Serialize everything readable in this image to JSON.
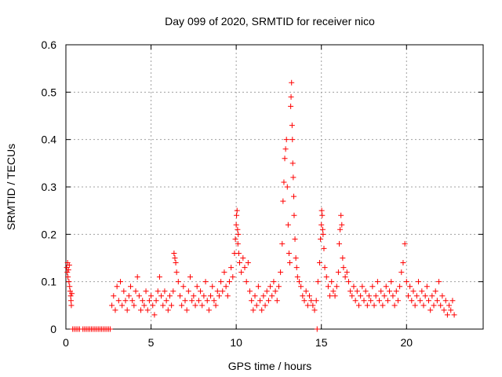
{
  "chart_data": {
    "type": "scatter",
    "title": "Day 099 of 2020, SRMTID for receiver nico",
    "xlabel": "GPS time / hours",
    "ylabel": "SRMTID / TECUs",
    "xlim": [
      0,
      24.5
    ],
    "ylim": [
      0,
      0.6
    ],
    "xticks": [
      0,
      5,
      10,
      15,
      20
    ],
    "xtick_labels": [
      "0",
      "5",
      "10",
      "15",
      "20"
    ],
    "yticks": [
      0,
      0.1,
      0.2,
      0.3,
      0.4,
      0.5,
      0.6
    ],
    "ytick_labels": [
      "0",
      "0.1",
      "0.2",
      "0.3",
      "0.4",
      "0.5",
      "0.6"
    ],
    "grid": true,
    "marker": "plus",
    "color": "#ff0000",
    "series": [
      {
        "name": "SRMTID",
        "points": [
          [
            0.05,
            0.13
          ],
          [
            0.08,
            0.12
          ],
          [
            0.1,
            0.14
          ],
          [
            0.12,
            0.11
          ],
          [
            0.15,
            0.125
          ],
          [
            0.18,
            0.1
          ],
          [
            0.2,
            0.135
          ],
          [
            0.22,
            0.09
          ],
          [
            0.25,
            0.08
          ],
          [
            0.28,
            0.07
          ],
          [
            0.3,
            0.06
          ],
          [
            0.32,
            0.05
          ],
          [
            0.35,
            0.075
          ],
          [
            0.4,
            0.0
          ],
          [
            0.5,
            0.0
          ],
          [
            0.6,
            0.0
          ],
          [
            0.7,
            0.0
          ],
          [
            0.8,
            0.0
          ],
          [
            1.0,
            0.0
          ],
          [
            1.1,
            0.0
          ],
          [
            1.2,
            0.0
          ],
          [
            1.3,
            0.0
          ],
          [
            1.4,
            0.0
          ],
          [
            1.5,
            0.0
          ],
          [
            1.6,
            0.0
          ],
          [
            1.7,
            0.0
          ],
          [
            1.8,
            0.0
          ],
          [
            1.9,
            0.0
          ],
          [
            2.0,
            0.0
          ],
          [
            2.1,
            0.0
          ],
          [
            2.2,
            0.0
          ],
          [
            2.3,
            0.0
          ],
          [
            2.4,
            0.0
          ],
          [
            2.5,
            0.0
          ],
          [
            2.6,
            0.0
          ],
          [
            2.7,
            0.05
          ],
          [
            2.8,
            0.07
          ],
          [
            2.9,
            0.04
          ],
          [
            3.0,
            0.09
          ],
          [
            3.1,
            0.06
          ],
          [
            3.2,
            0.1
          ],
          [
            3.3,
            0.05
          ],
          [
            3.4,
            0.08
          ],
          [
            3.5,
            0.06
          ],
          [
            3.6,
            0.04
          ],
          [
            3.7,
            0.07
          ],
          [
            3.8,
            0.09
          ],
          [
            3.9,
            0.06
          ],
          [
            4.0,
            0.05
          ],
          [
            4.1,
            0.08
          ],
          [
            4.2,
            0.11
          ],
          [
            4.3,
            0.07
          ],
          [
            4.4,
            0.04
          ],
          [
            4.5,
            0.06
          ],
          [
            4.6,
            0.05
          ],
          [
            4.7,
            0.08
          ],
          [
            4.8,
            0.04
          ],
          [
            4.9,
            0.06
          ],
          [
            5.0,
            0.07
          ],
          [
            5.1,
            0.05
          ],
          [
            5.2,
            0.03
          ],
          [
            5.3,
            0.06
          ],
          [
            5.4,
            0.08
          ],
          [
            5.5,
            0.11
          ],
          [
            5.6,
            0.07
          ],
          [
            5.7,
            0.05
          ],
          [
            5.8,
            0.08
          ],
          [
            5.9,
            0.06
          ],
          [
            6.0,
            0.04
          ],
          [
            6.1,
            0.07
          ],
          [
            6.2,
            0.05
          ],
          [
            6.3,
            0.08
          ],
          [
            6.35,
            0.16
          ],
          [
            6.4,
            0.15
          ],
          [
            6.45,
            0.14
          ],
          [
            6.5,
            0.12
          ],
          [
            6.6,
            0.1
          ],
          [
            6.7,
            0.07
          ],
          [
            6.8,
            0.05
          ],
          [
            6.9,
            0.09
          ],
          [
            7.0,
            0.06
          ],
          [
            7.1,
            0.04
          ],
          [
            7.2,
            0.08
          ],
          [
            7.3,
            0.11
          ],
          [
            7.4,
            0.06
          ],
          [
            7.5,
            0.07
          ],
          [
            7.6,
            0.05
          ],
          [
            7.7,
            0.09
          ],
          [
            7.8,
            0.06
          ],
          [
            7.9,
            0.08
          ],
          [
            8.0,
            0.05
          ],
          [
            8.1,
            0.07
          ],
          [
            8.2,
            0.1
          ],
          [
            8.3,
            0.06
          ],
          [
            8.4,
            0.04
          ],
          [
            8.5,
            0.07
          ],
          [
            8.6,
            0.09
          ],
          [
            8.7,
            0.06
          ],
          [
            8.8,
            0.05
          ],
          [
            8.9,
            0.08
          ],
          [
            9.0,
            0.07
          ],
          [
            9.1,
            0.1
          ],
          [
            9.2,
            0.08
          ],
          [
            9.3,
            0.12
          ],
          [
            9.4,
            0.09
          ],
          [
            9.5,
            0.07
          ],
          [
            9.6,
            0.1
          ],
          [
            9.7,
            0.13
          ],
          [
            9.8,
            0.11
          ],
          [
            9.9,
            0.16
          ],
          [
            9.95,
            0.19
          ],
          [
            10.0,
            0.22
          ],
          [
            10.02,
            0.24
          ],
          [
            10.05,
            0.25
          ],
          [
            10.08,
            0.21
          ],
          [
            10.1,
            0.18
          ],
          [
            10.12,
            0.2
          ],
          [
            10.15,
            0.16
          ],
          [
            10.2,
            0.14
          ],
          [
            10.3,
            0.12
          ],
          [
            10.4,
            0.15
          ],
          [
            10.5,
            0.13
          ],
          [
            10.6,
            0.1
          ],
          [
            10.7,
            0.14
          ],
          [
            10.8,
            0.08
          ],
          [
            10.9,
            0.06
          ],
          [
            11.0,
            0.04
          ],
          [
            11.1,
            0.07
          ],
          [
            11.2,
            0.05
          ],
          [
            11.3,
            0.09
          ],
          [
            11.4,
            0.06
          ],
          [
            11.5,
            0.04
          ],
          [
            11.6,
            0.07
          ],
          [
            11.7,
            0.05
          ],
          [
            11.8,
            0.08
          ],
          [
            11.9,
            0.06
          ],
          [
            12.0,
            0.09
          ],
          [
            12.1,
            0.07
          ],
          [
            12.2,
            0.1
          ],
          [
            12.3,
            0.08
          ],
          [
            12.4,
            0.06
          ],
          [
            12.5,
            0.09
          ],
          [
            12.6,
            0.12
          ],
          [
            12.7,
            0.18
          ],
          [
            12.75,
            0.27
          ],
          [
            12.8,
            0.31
          ],
          [
            12.85,
            0.36
          ],
          [
            12.9,
            0.38
          ],
          [
            12.95,
            0.4
          ],
          [
            13.0,
            0.3
          ],
          [
            13.05,
            0.22
          ],
          [
            13.1,
            0.16
          ],
          [
            13.15,
            0.14
          ],
          [
            13.2,
            0.47
          ],
          [
            13.22,
            0.49
          ],
          [
            13.25,
            0.52
          ],
          [
            13.28,
            0.43
          ],
          [
            13.3,
            0.4
          ],
          [
            13.32,
            0.35
          ],
          [
            13.35,
            0.32
          ],
          [
            13.38,
            0.28
          ],
          [
            13.4,
            0.24
          ],
          [
            13.45,
            0.19
          ],
          [
            13.5,
            0.15
          ],
          [
            13.55,
            0.13
          ],
          [
            13.6,
            0.11
          ],
          [
            13.7,
            0.1
          ],
          [
            13.8,
            0.09
          ],
          [
            13.9,
            0.07
          ],
          [
            14.0,
            0.06
          ],
          [
            14.1,
            0.08
          ],
          [
            14.2,
            0.05
          ],
          [
            14.3,
            0.07
          ],
          [
            14.4,
            0.06
          ],
          [
            14.5,
            0.05
          ],
          [
            14.6,
            0.04
          ],
          [
            14.7,
            0.06
          ],
          [
            14.75,
            0.0
          ],
          [
            14.8,
            0.1
          ],
          [
            14.9,
            0.14
          ],
          [
            14.95,
            0.19
          ],
          [
            15.0,
            0.22
          ],
          [
            15.02,
            0.25
          ],
          [
            15.05,
            0.24
          ],
          [
            15.08,
            0.21
          ],
          [
            15.1,
            0.2
          ],
          [
            15.15,
            0.17
          ],
          [
            15.2,
            0.13
          ],
          [
            15.3,
            0.11
          ],
          [
            15.4,
            0.09
          ],
          [
            15.5,
            0.07
          ],
          [
            15.6,
            0.1
          ],
          [
            15.7,
            0.08
          ],
          [
            15.8,
            0.07
          ],
          [
            15.9,
            0.09
          ],
          [
            16.0,
            0.12
          ],
          [
            16.05,
            0.18
          ],
          [
            16.1,
            0.21
          ],
          [
            16.15,
            0.24
          ],
          [
            16.2,
            0.22
          ],
          [
            16.25,
            0.15
          ],
          [
            16.3,
            0.13
          ],
          [
            16.4,
            0.11
          ],
          [
            16.5,
            0.12
          ],
          [
            16.6,
            0.1
          ],
          [
            16.7,
            0.08
          ],
          [
            16.8,
            0.07
          ],
          [
            16.9,
            0.09
          ],
          [
            17.0,
            0.06
          ],
          [
            17.1,
            0.08
          ],
          [
            17.2,
            0.05
          ],
          [
            17.3,
            0.07
          ],
          [
            17.4,
            0.09
          ],
          [
            17.5,
            0.06
          ],
          [
            17.6,
            0.08
          ],
          [
            17.7,
            0.05
          ],
          [
            17.8,
            0.07
          ],
          [
            17.9,
            0.06
          ],
          [
            18.0,
            0.09
          ],
          [
            18.1,
            0.05
          ],
          [
            18.2,
            0.07
          ],
          [
            18.3,
            0.1
          ],
          [
            18.4,
            0.06
          ],
          [
            18.5,
            0.08
          ],
          [
            18.6,
            0.05
          ],
          [
            18.7,
            0.07
          ],
          [
            18.8,
            0.09
          ],
          [
            18.9,
            0.06
          ],
          [
            19.0,
            0.08
          ],
          [
            19.1,
            0.1
          ],
          [
            19.2,
            0.07
          ],
          [
            19.3,
            0.05
          ],
          [
            19.4,
            0.08
          ],
          [
            19.5,
            0.06
          ],
          [
            19.6,
            0.09
          ],
          [
            19.7,
            0.12
          ],
          [
            19.8,
            0.14
          ],
          [
            19.9,
            0.18
          ],
          [
            20.0,
            0.1
          ],
          [
            20.1,
            0.07
          ],
          [
            20.2,
            0.09
          ],
          [
            20.3,
            0.06
          ],
          [
            20.4,
            0.08
          ],
          [
            20.5,
            0.05
          ],
          [
            20.6,
            0.07
          ],
          [
            20.7,
            0.1
          ],
          [
            20.8,
            0.06
          ],
          [
            20.9,
            0.08
          ],
          [
            21.0,
            0.05
          ],
          [
            21.1,
            0.07
          ],
          [
            21.2,
            0.09
          ],
          [
            21.3,
            0.06
          ],
          [
            21.4,
            0.04
          ],
          [
            21.5,
            0.07
          ],
          [
            21.6,
            0.05
          ],
          [
            21.7,
            0.08
          ],
          [
            21.8,
            0.06
          ],
          [
            21.9,
            0.1
          ],
          [
            22.0,
            0.05
          ],
          [
            22.1,
            0.07
          ],
          [
            22.2,
            0.04
          ],
          [
            22.3,
            0.06
          ],
          [
            22.4,
            0.03
          ],
          [
            22.5,
            0.05
          ],
          [
            22.6,
            0.04
          ],
          [
            22.7,
            0.06
          ],
          [
            22.8,
            0.03
          ]
        ]
      }
    ]
  }
}
